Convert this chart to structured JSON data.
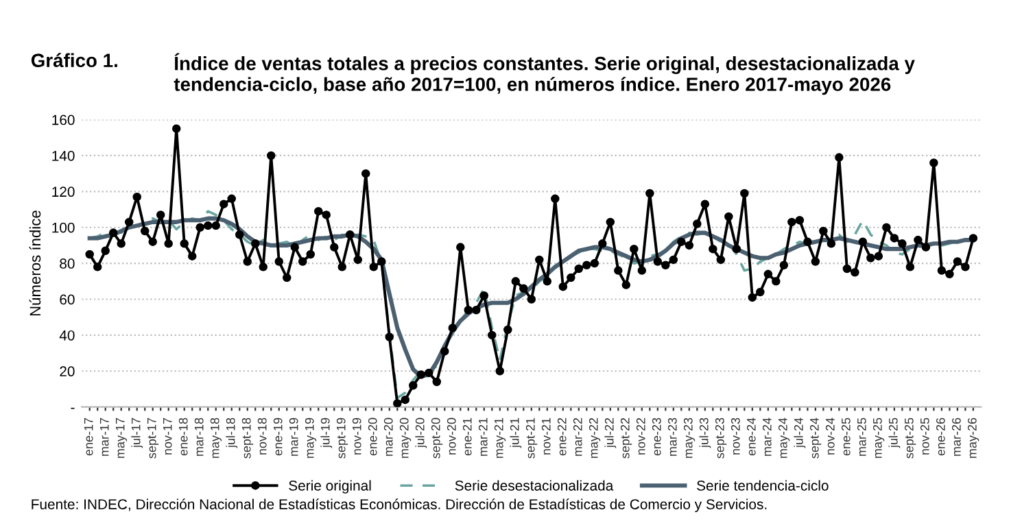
{
  "chart_data": {
    "type": "line",
    "title": "Gráfico 1.",
    "subtitle": "Índice de ventas totales a precios constantes. Serie original, desestacionalizada y tendencia-ciclo, base año 2017=100, en números índice. Enero 2017-mayo 2026",
    "ylabel": "Números índice",
    "annotations": [
      "Fuente: INDEC, Dirección Nacional de Estadísticas Económicas. Dirección de Estadísticas de Comercio y Servicios."
    ],
    "categories": [
      "ene-17",
      null,
      "mar-17",
      null,
      "may-17",
      null,
      "jul-17",
      null,
      "sept-17",
      null,
      "nov-17",
      null,
      "ene-18",
      null,
      "mar-18",
      null,
      "may-18",
      null,
      "jul-18",
      null,
      "sept-18",
      null,
      "nov-18",
      null,
      "ene-19",
      null,
      "mar-19",
      null,
      "may-19",
      null,
      "jul-19",
      null,
      "sept-19",
      null,
      "nov-19",
      null,
      "ene-20",
      null,
      "mar-20",
      null,
      "may-20",
      null,
      "jul-20",
      null,
      "sept-20",
      null,
      "nov-20",
      null,
      "ene-21",
      null,
      "mar-21",
      null,
      "may-21",
      null,
      "jul-21",
      null,
      "sept-21",
      null,
      "nov-21",
      null,
      "ene-22",
      null,
      "mar-22",
      null,
      "may-22",
      null,
      "jul-22",
      null,
      "sept-22",
      null,
      "nov-22",
      null,
      "ene-23",
      null,
      "mar-23",
      null,
      "may-23",
      null,
      "jul-23",
      null,
      "sept-23",
      null,
      "nov-23",
      null,
      "ene-24",
      null,
      "mar-24",
      null,
      "may-24",
      null,
      "jul-24",
      null,
      "sept-24",
      null,
      "nov-24",
      null,
      "ene-25",
      null,
      "mar-25",
      null,
      "may-25",
      null,
      "jul-25",
      null,
      "sept-25",
      null,
      "nov-25",
      null,
      "ene-26",
      null,
      "mar-26",
      null,
      "may-26"
    ],
    "series": [
      {
        "name": "Serie original",
        "color": "#000000",
        "marker": "circle",
        "line_style": "solid",
        "values": [
          85,
          78,
          87,
          97,
          91,
          103,
          117,
          98,
          92,
          107,
          91,
          155,
          91,
          84,
          100,
          101,
          101,
          113,
          116,
          96,
          81,
          91,
          78,
          140,
          81,
          72,
          89,
          81,
          85,
          109,
          107,
          89,
          78,
          96,
          82,
          130,
          78,
          81,
          39,
          2,
          4,
          12,
          18,
          19,
          14,
          31,
          44,
          89,
          54,
          54,
          62,
          40,
          20,
          43,
          70,
          66,
          60,
          82,
          70,
          116,
          67,
          72,
          77,
          79,
          80,
          91,
          103,
          76,
          68,
          88,
          76,
          119,
          81,
          79,
          82,
          92,
          90,
          102,
          113,
          88,
          82,
          106,
          88,
          119,
          61,
          64,
          74,
          70,
          79,
          103,
          104,
          92,
          81,
          98,
          91,
          139,
          77,
          75,
          92,
          83,
          84,
          100,
          94,
          91,
          78,
          93,
          89,
          136,
          76,
          74,
          81,
          78,
          94
        ]
      },
      {
        "name": "Serie desestacionalizada",
        "color": "#6aa6a0",
        "marker": "none",
        "line_style": "dashed",
        "values": [
          94,
          95,
          97,
          98,
          97,
          100,
          101,
          103,
          105,
          103,
          104,
          99,
          103,
          105,
          104,
          109,
          107,
          104,
          99,
          96,
          92,
          90,
          93,
          89,
          91,
          92,
          89,
          93,
          96,
          93,
          95,
          93,
          96,
          94,
          96,
          95,
          93,
          80,
          41,
          5,
          8,
          15,
          20,
          19,
          23,
          34,
          41,
          48,
          54,
          58,
          66,
          44,
          26,
          46,
          62,
          64,
          65,
          70,
          73,
          78,
          80,
          84,
          86,
          88,
          88,
          87,
          87,
          85,
          83,
          80,
          81,
          84,
          85,
          87,
          92,
          95,
          97,
          96,
          97,
          95,
          92,
          91,
          85,
          76,
          77,
          81,
          83,
          85,
          88,
          90,
          92,
          91,
          92,
          93,
          94,
          96,
          92,
          96,
          104,
          96,
          92,
          90,
          86,
          85,
          88,
          89,
          90,
          92,
          90,
          91,
          93,
          93,
          94
        ]
      },
      {
        "name": "Serie tendencia-ciclo",
        "color": "#4b6070",
        "marker": "none",
        "line_style": "solid",
        "values": [
          94,
          94,
          95,
          96,
          98,
          100,
          101,
          102,
          103,
          103,
          103,
          103,
          104,
          104,
          104,
          105,
          105,
          104,
          102,
          99,
          95,
          92,
          91,
          90,
          90,
          90,
          91,
          92,
          93,
          94,
          94,
          95,
          95,
          96,
          95,
          92,
          88,
          82,
          63,
          44,
          32,
          21,
          17,
          18,
          25,
          34,
          42,
          48,
          52,
          55,
          57,
          58,
          58,
          58,
          60,
          63,
          67,
          71,
          74,
          78,
          81,
          84,
          87,
          88,
          89,
          89,
          88,
          86,
          84,
          82,
          81,
          82,
          84,
          87,
          91,
          94,
          96,
          97,
          97,
          95,
          93,
          90,
          88,
          86,
          84,
          83,
          83,
          85,
          86,
          88,
          90,
          91,
          92,
          93,
          93,
          94,
          93,
          92,
          91,
          90,
          89,
          88,
          88,
          88,
          89,
          90,
          90,
          91,
          91,
          92,
          92,
          93,
          93
        ]
      }
    ],
    "ylim": [
      0,
      160
    ],
    "yticks": [
      {
        "value": 0,
        "label": "-"
      },
      20,
      40,
      60,
      80,
      100,
      120,
      140,
      160
    ],
    "grid": "y",
    "legend": "bottom"
  }
}
